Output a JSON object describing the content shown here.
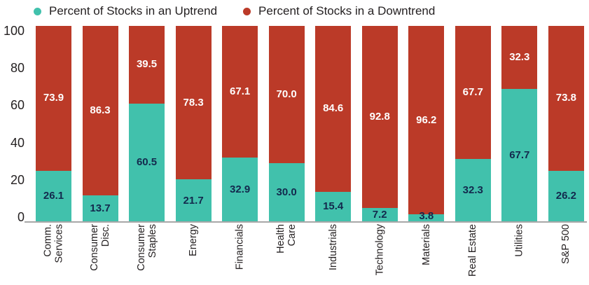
{
  "legend": {
    "items": [
      {
        "label": "Percent of Stocks in an Uptrend",
        "color": "#41C1AC"
      },
      {
        "label": "Percent of Stocks in a Downtrend",
        "color": "#BB3A28"
      }
    ]
  },
  "colors": {
    "uptrend": "#41C1AC",
    "downtrend": "#BB3A28",
    "uptrend_value_text": "#13294D",
    "downtrend_value_text": "#FFFFFF",
    "axis_text": "#231F20",
    "axis_line": "#A8A8A8",
    "background": "#FFFFFF"
  },
  "y_axis": {
    "ticks": [
      "100",
      "80",
      "60",
      "40",
      "20",
      "0"
    ]
  },
  "chart_data": {
    "type": "bar",
    "stacked": true,
    "orientation": "vertical",
    "title": "",
    "xlabel": "",
    "ylabel": "",
    "ylim": [
      0,
      100
    ],
    "y_ticks": [
      0,
      20,
      40,
      60,
      80,
      100
    ],
    "grid": false,
    "legend_position": "top",
    "categories": [
      "Comm. Services",
      "Consumer Disc.",
      "Consumer Staples",
      "Energy",
      "Financials",
      "Health Care",
      "Industrials",
      "Technology",
      "Materials",
      "Real Estate",
      "Utilities",
      "S&P 500"
    ],
    "category_display": [
      "Comm.\nServices",
      "Consumer\nDisc.",
      "Consumer\nStaples",
      "Energy",
      "Financials",
      "Health\nCare",
      "Industrials",
      "Technology",
      "Materials",
      "Real Estate",
      "Utilities",
      "S&P 500"
    ],
    "series": [
      {
        "name": "Percent of Stocks in an Uptrend",
        "color": "#41C1AC",
        "values": [
          26.1,
          13.7,
          60.5,
          21.7,
          32.9,
          30.0,
          15.4,
          7.2,
          3.8,
          32.3,
          67.7,
          26.2
        ],
        "labels": [
          "26.1",
          "13.7",
          "60.5",
          "21.7",
          "32.9",
          "30.0",
          "15.4",
          "7.2",
          "3.8",
          "32.3",
          "67.7",
          "26.2"
        ]
      },
      {
        "name": "Percent of Stocks in a Downtrend",
        "color": "#BB3A28",
        "values": [
          73.9,
          86.3,
          39.5,
          78.3,
          67.1,
          70.0,
          84.6,
          92.8,
          96.2,
          67.7,
          32.3,
          73.8
        ],
        "labels": [
          "73.9",
          "86.3",
          "39.5",
          "78.3",
          "67.1",
          "70.0",
          "84.6",
          "92.8",
          "96.2",
          "67.7",
          "32.3",
          "73.8"
        ]
      }
    ]
  }
}
